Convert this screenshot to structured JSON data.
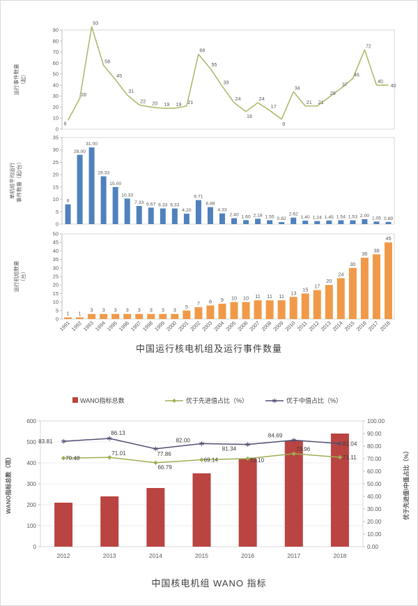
{
  "chart_data": [
    {
      "id": "operating-events",
      "type": "line",
      "title": "中国运行核电机组及运行事件数量",
      "categories": [
        "1991",
        "1992",
        "1993",
        "1994",
        "1995",
        "1996",
        "1997",
        "1998",
        "1999",
        "2000",
        "2001",
        "2002",
        "2003",
        "2004",
        "2005",
        "2006",
        "2007",
        "2008",
        "2009",
        "2010",
        "2011",
        "2012",
        "2013",
        "2014",
        "2015",
        "2016",
        "2017",
        "2018"
      ],
      "values": [
        8,
        28,
        93,
        58,
        45,
        31,
        22,
        20,
        19,
        19,
        21,
        68,
        55,
        39,
        24,
        16,
        24,
        17,
        9,
        34,
        21,
        21,
        29,
        37,
        46,
        72,
        40,
        40
      ],
      "labels": [
        "8",
        "28",
        "93",
        "58",
        "45",
        "31",
        "22",
        "20",
        "19",
        "19",
        "21",
        "68",
        "55",
        "39",
        "24",
        "16",
        "24",
        "17",
        "9",
        "34",
        "21",
        "21",
        "29",
        "37",
        "46",
        "72",
        "40",
        "40"
      ],
      "ylabel": "运行事件数量（起）",
      "ylabel_lines": [
        "运行事件数量",
        "（起）"
      ],
      "ylim": [
        0,
        90
      ],
      "ytick_step": 10,
      "color": "#aeb96d",
      "grid": false,
      "legend_position": "none"
    },
    {
      "id": "avg-events-per-unit",
      "type": "bar",
      "title": "",
      "categories": [
        "1991",
        "1992",
        "1993",
        "1994",
        "1995",
        "1996",
        "1997",
        "1998",
        "1999",
        "2000",
        "2001",
        "2002",
        "2003",
        "2004",
        "2005",
        "2006",
        "2007",
        "2008",
        "2009",
        "2010",
        "2011",
        "2012",
        "2013",
        "2014",
        "2015",
        "2016",
        "2017",
        "2018"
      ],
      "values": [
        8,
        28,
        31,
        19.33,
        15,
        10.33,
        7.33,
        6.67,
        6.33,
        6.33,
        4.2,
        9.71,
        6.88,
        4.33,
        2.4,
        1.6,
        2.18,
        1.55,
        0.82,
        2.62,
        1.4,
        1.24,
        1.45,
        1.54,
        1.53,
        2,
        1.05,
        0.89
      ],
      "labels": [
        "8",
        "28.00",
        "31.00",
        "19.33",
        "15.00",
        "10.33",
        "7.33",
        "6.67",
        "6.33",
        "6.33",
        "4.20",
        "9.71",
        "6.88",
        "4.33",
        "2.40",
        "1.60",
        "2.18",
        "1.55",
        "0.82",
        "2.62",
        "1.40",
        "1.24",
        "1.45",
        "1.54",
        "1.53",
        "2.00",
        "1.05",
        "0.89"
      ],
      "ylabel": "单机组平均运行事件数量（起/台）",
      "ylabel_lines": [
        "单机组平均运行",
        "事件数量（起/台）"
      ],
      "ylim": [
        0,
        35
      ],
      "ytick_step": 5,
      "color": "#4f81bd",
      "grid": false,
      "legend_position": "none"
    },
    {
      "id": "operating-units",
      "type": "bar",
      "title": "",
      "categories": [
        "1991",
        "1992",
        "1993",
        "1994",
        "1995",
        "1996",
        "1997",
        "1998",
        "1999",
        "2000",
        "2001",
        "2002",
        "2003",
        "2004",
        "2005",
        "2006",
        "2007",
        "2008",
        "2009",
        "2010",
        "2011",
        "2012",
        "2013",
        "2014",
        "2015",
        "2016",
        "2017",
        "2018"
      ],
      "values": [
        1,
        1,
        3,
        3,
        3,
        3,
        3,
        3,
        3,
        3,
        5,
        7,
        8,
        9,
        10,
        10,
        11,
        11,
        11,
        13,
        15,
        17,
        20,
        24,
        30,
        36,
        38,
        45
      ],
      "labels": [
        "1",
        "1",
        "3",
        "3",
        "3",
        "3",
        "3",
        "3",
        "3",
        "3",
        "5",
        "7",
        "8",
        "9",
        "10",
        "10",
        "11",
        "11",
        "11",
        "13",
        "15",
        "17",
        "20",
        "24",
        "30",
        "36",
        "38",
        "45"
      ],
      "ylabel": "运行机组数量（台）",
      "ylabel_lines": [
        "运行机组数量",
        "（台）"
      ],
      "ylim": [
        0,
        50
      ],
      "ytick_step": 5,
      "color": "#f09a49",
      "grid": false,
      "legend_position": "none"
    },
    {
      "id": "wano-indicators",
      "type": "bar",
      "title": "中国核电机组 WANO 指标",
      "categories": [
        "2012",
        "2013",
        "2014",
        "2015",
        "2016",
        "2017",
        "2018"
      ],
      "series": [
        {
          "name": "WANO指标总数",
          "type": "bar",
          "axis": "left",
          "color": "#b94441",
          "values": [
            210,
            240,
            280,
            350,
            420,
            505,
            540
          ]
        },
        {
          "name": "优于先进值占比（%）",
          "type": "line",
          "axis": "right",
          "marker": "diamond",
          "color": "#9fad52",
          "values": [
            70.48,
            71.01,
            66.79,
            69.14,
            70.1,
            73.96,
            71.11
          ],
          "labels": [
            "70.48",
            "71.01",
            "66.79",
            "69.14",
            "70.10",
            "73.96",
            "71.11"
          ]
        },
        {
          "name": "优于中值占比（%）",
          "type": "line",
          "axis": "right",
          "marker": "asterisk",
          "color": "#504f72",
          "values": [
            83.81,
            86.13,
            77.86,
            82.0,
            81.34,
            84.69,
            82.04
          ],
          "labels": [
            "83.81",
            "86.13",
            "77.86",
            "82.00",
            "81.34",
            "84.69",
            "82.04"
          ]
        }
      ],
      "left_axis": {
        "label": "WANO指标总数（项）",
        "ylim": [
          0,
          600
        ],
        "step": 100
      },
      "right_axis": {
        "label": "优于先进值\\中值占比（%）",
        "ylim": [
          0,
          100
        ],
        "step": 10
      },
      "legend_position": "top",
      "grid": true
    }
  ]
}
